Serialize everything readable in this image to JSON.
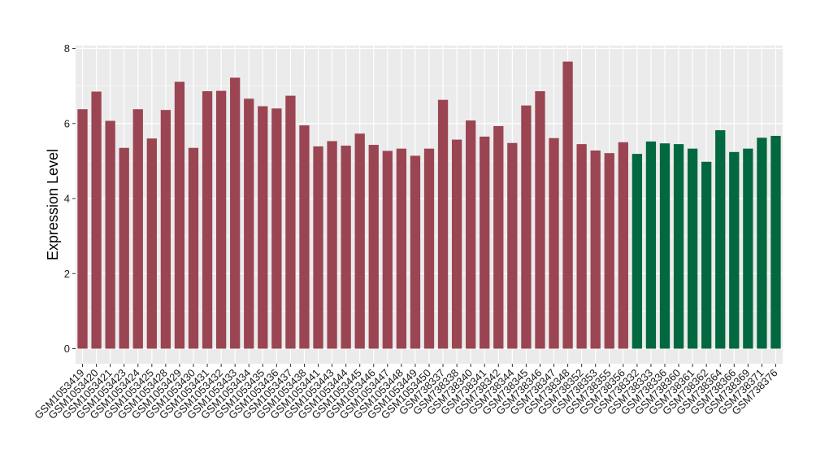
{
  "chart_data": {
    "type": "bar",
    "title": "",
    "xlabel": "",
    "ylabel": "Expression Level",
    "ylim": [
      0,
      8
    ],
    "yticks": [
      0,
      2,
      4,
      6,
      8
    ],
    "grid": true,
    "legend": "none",
    "colors": {
      "group1": "#9B4452",
      "group2": "#016840",
      "panel": "#EBEBEB",
      "gridline": "#FFFFFF"
    },
    "categories": [
      "GSM1053419",
      "GSM1053420",
      "GSM1053421",
      "GSM1053423",
      "GSM1053424",
      "GSM1053425",
      "GSM1053428",
      "GSM1053429",
      "GSM1053430",
      "GSM1053431",
      "GSM1053432",
      "GSM1053433",
      "GSM1053434",
      "GSM1053435",
      "GSM1053436",
      "GSM1053437",
      "GSM1053438",
      "GSM1053441",
      "GSM1053443",
      "GSM1053444",
      "GSM1053445",
      "GSM1053446",
      "GSM1053447",
      "GSM1053448",
      "GSM1053449",
      "GSM1053450",
      "GSM738337",
      "GSM738338",
      "GSM738340",
      "GSM738341",
      "GSM738342",
      "GSM738344",
      "GSM738345",
      "GSM738346",
      "GSM738347",
      "GSM738348",
      "GSM738352",
      "GSM738353",
      "GSM738355",
      "GSM738356",
      "GSM738332",
      "GSM738333",
      "GSM738336",
      "GSM738360",
      "GSM738361",
      "GSM738362",
      "GSM738364",
      "GSM738366",
      "GSM738369",
      "GSM738371",
      "GSM738376"
    ],
    "values": [
      6.38,
      6.85,
      6.07,
      5.35,
      6.38,
      5.6,
      6.36,
      7.11,
      5.35,
      6.86,
      6.87,
      7.22,
      6.66,
      6.46,
      6.4,
      6.74,
      5.95,
      5.39,
      5.53,
      5.41,
      5.73,
      5.43,
      5.27,
      5.33,
      5.14,
      5.33,
      6.63,
      5.57,
      6.08,
      5.65,
      5.93,
      5.48,
      6.48,
      6.86,
      5.61,
      7.65,
      5.45,
      5.28,
      5.21,
      5.5,
      5.19,
      5.52,
      5.47,
      5.45,
      5.33,
      4.98,
      5.82,
      5.24,
      5.33,
      5.62,
      5.67
    ],
    "groups": [
      "group1",
      "group1",
      "group1",
      "group1",
      "group1",
      "group1",
      "group1",
      "group1",
      "group1",
      "group1",
      "group1",
      "group1",
      "group1",
      "group1",
      "group1",
      "group1",
      "group1",
      "group1",
      "group1",
      "group1",
      "group1",
      "group1",
      "group1",
      "group1",
      "group1",
      "group1",
      "group1",
      "group1",
      "group1",
      "group1",
      "group1",
      "group1",
      "group1",
      "group1",
      "group1",
      "group1",
      "group1",
      "group1",
      "group1",
      "group1",
      "group2",
      "group2",
      "group2",
      "group2",
      "group2",
      "group2",
      "group2",
      "group2",
      "group2",
      "group2",
      "group2"
    ]
  }
}
